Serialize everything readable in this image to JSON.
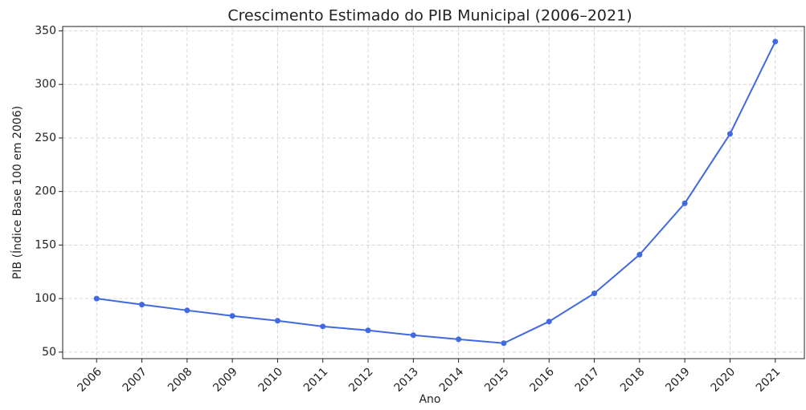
{
  "chart_data": {
    "type": "line",
    "title": "Crescimento Estimado do PIB Municipal (2006–2021)",
    "x_label": "Ano",
    "y_label": "PIB (Índice Base 100 em 2006)",
    "x": [
      2006,
      2007,
      2008,
      2009,
      2010,
      2011,
      2012,
      2013,
      2014,
      2015,
      2016,
      2017,
      2018,
      2019,
      2020,
      2021
    ],
    "series": [
      {
        "name": "PIB",
        "color": "#4169e1",
        "values": [
          100,
          94.4,
          89,
          83.8,
          79.3,
          74,
          70.3,
          65.8,
          62,
          58.3,
          78.6,
          104.9,
          141,
          189,
          253.8,
          340
        ]
      }
    ],
    "xlim": [
      2005.25,
      2021.75
    ],
    "xticks": [
      2006,
      2007,
      2008,
      2009,
      2010,
      2011,
      2012,
      2013,
      2014,
      2015,
      2016,
      2017,
      2018,
      2019,
      2020,
      2021
    ],
    "ylim": [
      43.9,
      354.1
    ],
    "yticks": [
      50,
      100,
      150,
      200,
      250,
      300,
      350
    ],
    "grid": true
  }
}
